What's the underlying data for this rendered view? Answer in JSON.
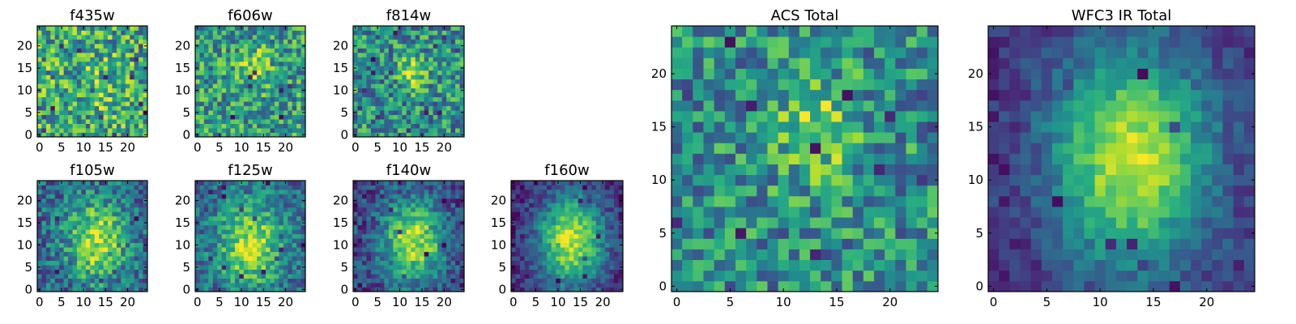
{
  "chart_data": [
    {
      "type": "heatmap",
      "title": "f435w",
      "xlabel": "",
      "ylabel": "",
      "rows": 25,
      "cols": 25,
      "xlim": [
        -0.5,
        24.5
      ],
      "ylim": [
        -0.5,
        24.5
      ],
      "xticks": [
        0,
        5,
        10,
        15,
        20
      ],
      "yticks": [
        0,
        5,
        10,
        15,
        20
      ],
      "colormap": "viridis",
      "peak_center": [
        13,
        10
      ],
      "peak_width": 3.0,
      "peak_strength": 0.15,
      "noise": 0.35,
      "base": 0.6,
      "seed": 1
    },
    {
      "type": "heatmap",
      "title": "f606w",
      "xlabel": "",
      "ylabel": "",
      "rows": 25,
      "cols": 25,
      "xlim": [
        -0.5,
        24.5
      ],
      "ylim": [
        -0.5,
        24.5
      ],
      "xticks": [
        0,
        5,
        10,
        15,
        20
      ],
      "yticks": [
        0,
        5,
        10,
        15,
        20
      ],
      "colormap": "viridis",
      "peak_center": [
        13,
        15
      ],
      "peak_width": 2.2,
      "peak_strength": 0.35,
      "noise": 0.3,
      "base": 0.55,
      "seed": 2
    },
    {
      "type": "heatmap",
      "title": "f814w",
      "xlabel": "",
      "ylabel": "",
      "rows": 25,
      "cols": 25,
      "xlim": [
        -0.5,
        24.5
      ],
      "ylim": [
        -0.5,
        24.5
      ],
      "xticks": [
        0,
        5,
        10,
        15,
        20
      ],
      "yticks": [
        0,
        5,
        10,
        15,
        20
      ],
      "colormap": "viridis",
      "peak_center": [
        13,
        14
      ],
      "peak_width": 2.0,
      "peak_strength": 0.4,
      "noise": 0.3,
      "base": 0.5,
      "seed": 3
    },
    {
      "type": "heatmap",
      "title": "f105w",
      "xlabel": "",
      "ylabel": "",
      "rows": 25,
      "cols": 25,
      "xlim": [
        -0.5,
        24.5
      ],
      "ylim": [
        -0.5,
        24.5
      ],
      "xticks": [
        0,
        5,
        10,
        15,
        20
      ],
      "yticks": [
        0,
        5,
        10,
        15,
        20
      ],
      "colormap": "viridis",
      "peak_center": [
        13,
        11
      ],
      "peak_width": 4.5,
      "peak_strength": 0.55,
      "noise": 0.25,
      "base": 0.35,
      "seed": 4
    },
    {
      "type": "heatmap",
      "title": "f125w",
      "xlabel": "",
      "ylabel": "",
      "rows": 25,
      "cols": 25,
      "xlim": [
        -0.5,
        24.5
      ],
      "ylim": [
        -0.5,
        24.5
      ],
      "xticks": [
        0,
        5,
        10,
        15,
        20
      ],
      "yticks": [
        0,
        5,
        10,
        15,
        20
      ],
      "colormap": "viridis",
      "peak_center": [
        12,
        10
      ],
      "peak_width": 5.0,
      "peak_strength": 0.55,
      "noise": 0.22,
      "base": 0.35,
      "seed": 5
    },
    {
      "type": "heatmap",
      "title": "f140w",
      "xlabel": "",
      "ylabel": "",
      "rows": 25,
      "cols": 25,
      "xlim": [
        -0.5,
        24.5
      ],
      "ylim": [
        -0.5,
        24.5
      ],
      "xticks": [
        0,
        5,
        10,
        15,
        20
      ],
      "yticks": [
        0,
        5,
        10,
        15,
        20
      ],
      "colormap": "viridis",
      "peak_center": [
        13,
        11
      ],
      "peak_width": 5.0,
      "peak_strength": 0.7,
      "noise": 0.2,
      "base": 0.2,
      "seed": 6
    },
    {
      "type": "heatmap",
      "title": "f160w",
      "xlabel": "",
      "ylabel": "",
      "rows": 25,
      "cols": 25,
      "xlim": [
        -0.5,
        24.5
      ],
      "ylim": [
        -0.5,
        24.5
      ],
      "xticks": [
        0,
        5,
        10,
        15,
        20
      ],
      "yticks": [
        0,
        5,
        10,
        15,
        20
      ],
      "colormap": "viridis",
      "peak_center": [
        13,
        11
      ],
      "peak_width": 5.5,
      "peak_strength": 0.8,
      "noise": 0.15,
      "base": 0.1,
      "seed": 7
    },
    {
      "type": "heatmap",
      "title": "ACS Total",
      "xlabel": "",
      "ylabel": "",
      "rows": 25,
      "cols": 25,
      "xlim": [
        -0.5,
        24.5
      ],
      "ylim": [
        -0.5,
        24.5
      ],
      "xticks": [
        0,
        5,
        10,
        15,
        20
      ],
      "yticks": [
        0,
        5,
        10,
        15,
        20
      ],
      "colormap": "viridis",
      "peak_center": [
        13,
        15
      ],
      "peak_width": 2.5,
      "peak_strength": 0.35,
      "noise": 0.28,
      "base": 0.5,
      "seed": 8
    },
    {
      "type": "heatmap",
      "title": "WFC3 IR Total",
      "xlabel": "",
      "ylabel": "",
      "rows": 25,
      "cols": 25,
      "xlim": [
        -0.5,
        24.5
      ],
      "ylim": [
        -0.5,
        24.5
      ],
      "xticks": [
        0,
        5,
        10,
        15,
        20
      ],
      "yticks": [
        0,
        5,
        10,
        15,
        20
      ],
      "colormap": "viridis",
      "peak_center": [
        13,
        12
      ],
      "peak_width": 5.5,
      "peak_strength": 0.8,
      "noise": 0.12,
      "base": 0.12,
      "seed": 9
    }
  ],
  "colors": {
    "viridis_stops": [
      "#440154",
      "#472c7a",
      "#3b518b",
      "#2c718e",
      "#21908d",
      "#27ad81",
      "#5cc863",
      "#aadc32",
      "#fde725"
    ],
    "axis": "#000000",
    "background": "#ffffff"
  }
}
